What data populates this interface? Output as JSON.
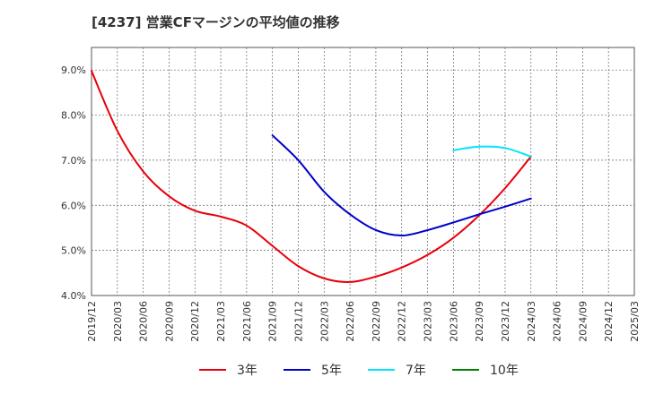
{
  "chart_data": {
    "type": "line",
    "title": "[4237]  営業CFマージンの平均値の推移",
    "xlabel": "",
    "ylabel": "",
    "ylim": [
      4.0,
      9.5
    ],
    "yticks": [
      4.0,
      5.0,
      6.0,
      7.0,
      8.0,
      9.0
    ],
    "ytick_labels": [
      "4.0%",
      "5.0%",
      "6.0%",
      "7.0%",
      "8.0%",
      "9.0%"
    ],
    "xtick_labels": [
      "2019/12",
      "2020/03",
      "2020/06",
      "2020/09",
      "2020/12",
      "2021/03",
      "2021/06",
      "2021/09",
      "2021/12",
      "2022/03",
      "2022/06",
      "2022/09",
      "2022/12",
      "2023/03",
      "2023/06",
      "2023/09",
      "2023/12",
      "2024/03",
      "2024/06",
      "2024/09",
      "2024/12",
      "2025/03"
    ],
    "grid": true,
    "legend_position": "bottom",
    "series": [
      {
        "name": "3年",
        "color": "#e8000b",
        "x": [
          "2019/12",
          "2020/03",
          "2020/06",
          "2020/09",
          "2020/12",
          "2021/03",
          "2021/06",
          "2021/09",
          "2021/12",
          "2022/03",
          "2022/06",
          "2022/09",
          "2022/12",
          "2023/03",
          "2023/06",
          "2023/09",
          "2023/12",
          "2024/03"
        ],
        "y": [
          8.98,
          7.65,
          6.75,
          6.2,
          5.88,
          5.75,
          5.55,
          5.1,
          4.65,
          4.38,
          4.3,
          4.42,
          4.62,
          4.9,
          5.28,
          5.78,
          6.38,
          7.08
        ]
      },
      {
        "name": "5年",
        "color": "#0000c8",
        "x": [
          "2021/09",
          "2021/12",
          "2022/03",
          "2022/06",
          "2022/09",
          "2022/12",
          "2023/03",
          "2023/06",
          "2023/09",
          "2023/12",
          "2024/03"
        ],
        "y": [
          7.55,
          7.0,
          6.3,
          5.8,
          5.45,
          5.33,
          5.45,
          5.62,
          5.8,
          5.97,
          6.15
        ]
      },
      {
        "name": "7年",
        "color": "#00e5ff",
        "x": [
          "2023/06",
          "2023/09",
          "2023/12",
          "2024/03"
        ],
        "y": [
          7.22,
          7.3,
          7.27,
          7.08
        ]
      },
      {
        "name": "10年",
        "color": "#008000",
        "x": [],
        "y": []
      }
    ]
  }
}
